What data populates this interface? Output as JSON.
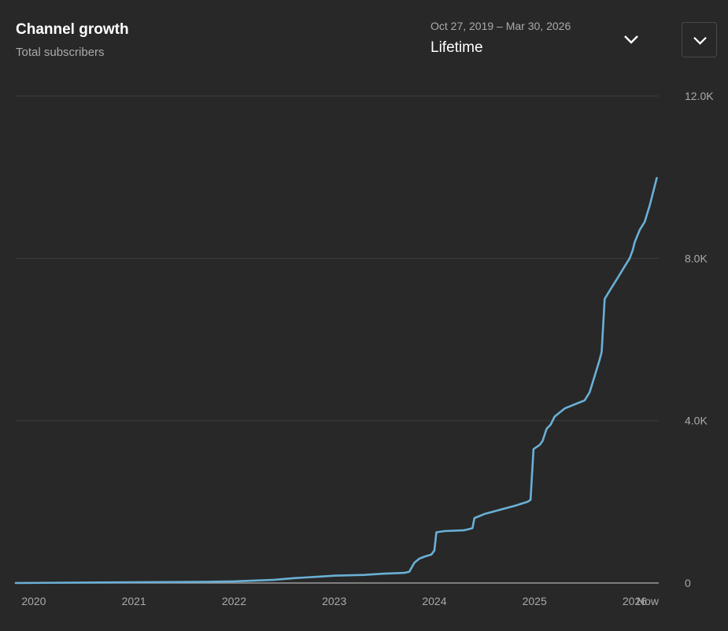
{
  "header": {
    "title": "Channel growth",
    "subtitle": "Total subscribers"
  },
  "range_picker": {
    "dates": "Oct 27, 2019 – Mar 30, 2026",
    "label": "Lifetime",
    "icon": "chevron-down-icon"
  },
  "menu_button": {
    "icon": "chevron-down-icon"
  },
  "colors": {
    "background": "#282828",
    "line": "#6ab0d6",
    "grid": "#3d3d3d",
    "axis_text": "#aaaaaa"
  },
  "chart_data": {
    "type": "line",
    "title": "Channel growth",
    "subtitle": "Total subscribers",
    "xlabel": "",
    "ylabel": "",
    "ylim": [
      0,
      12000
    ],
    "xlim": [
      2019.82,
      2026.24
    ],
    "y_ticks": [
      {
        "value": 0,
        "label": "0"
      },
      {
        "value": 4000,
        "label": "4.0K"
      },
      {
        "value": 8000,
        "label": "8.0K"
      },
      {
        "value": 12000,
        "label": "12.0K"
      }
    ],
    "x_ticks": [
      {
        "value": 2020,
        "label": "2020"
      },
      {
        "value": 2021,
        "label": "2021"
      },
      {
        "value": 2022,
        "label": "2022"
      },
      {
        "value": 2023,
        "label": "2023"
      },
      {
        "value": 2024,
        "label": "2024"
      },
      {
        "value": 2025,
        "label": "2025"
      },
      {
        "value": 2026,
        "label": "2026"
      },
      {
        "value": 2026.1,
        "label": "Now"
      }
    ],
    "grid": true,
    "series": [
      {
        "name": "Total subscribers",
        "x": [
          2019.82,
          2020.4,
          2021.0,
          2021.7,
          2022.0,
          2022.4,
          2022.6,
          2022.8,
          2023.0,
          2023.3,
          2023.5,
          2023.7,
          2023.75,
          2023.8,
          2023.85,
          2023.9,
          2023.97,
          2024.0,
          2024.02,
          2024.1,
          2024.3,
          2024.38,
          2024.4,
          2024.5,
          2024.65,
          2024.8,
          2024.93,
          2024.96,
          2024.99,
          2025.05,
          2025.08,
          2025.12,
          2025.16,
          2025.2,
          2025.3,
          2025.4,
          2025.5,
          2025.55,
          2025.6,
          2025.65,
          2025.67,
          2025.7,
          2025.75,
          2025.8,
          2025.85,
          2025.9,
          2025.95,
          2025.98,
          2026.0,
          2026.05,
          2026.1,
          2026.15,
          2026.22
        ],
        "y": [
          0,
          10,
          20,
          30,
          40,
          80,
          120,
          150,
          180,
          200,
          230,
          250,
          280,
          500,
          600,
          650,
          700,
          800,
          1250,
          1280,
          1300,
          1350,
          1600,
          1700,
          1800,
          1900,
          2000,
          2050,
          3300,
          3400,
          3500,
          3800,
          3900,
          4100,
          4300,
          4400,
          4500,
          4700,
          5100,
          5500,
          5700,
          7000,
          7200,
          7400,
          7600,
          7800,
          8000,
          8200,
          8400,
          8700,
          8900,
          9300,
          9980
        ]
      }
    ]
  }
}
